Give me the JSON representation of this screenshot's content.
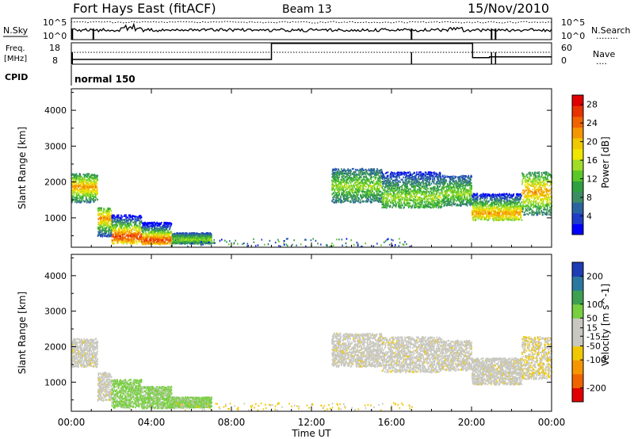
{
  "header": {
    "site": "Fort Hays East (fitACF)",
    "beam": "Beam 13",
    "date": "15/Nov/2010"
  },
  "nsky_panel": {
    "left_label": "N.Sky",
    "right_label": "N.Search",
    "right_dots": "........",
    "tick_top": "10^5",
    "tick_bottom": "10^0",
    "right_tick_top": "10^5",
    "right_tick_bottom": "10^0"
  },
  "freq_panel": {
    "left_label_top": "Freq.",
    "left_label_bottom": "[MHz]",
    "right_label": "Nave",
    "right_dots": "....",
    "tick_top": "18",
    "tick_bottom": "8",
    "right_tick_top": "60",
    "right_tick_bottom": "0",
    "freq_steps": [
      [
        0,
        8
      ],
      [
        10.0,
        15.5
      ],
      [
        20.05,
        8.8
      ],
      [
        20.9,
        9.2
      ],
      [
        24,
        9.2
      ]
    ]
  },
  "cpid": {
    "label": "CPID",
    "value": "normal 150"
  },
  "x_axis": {
    "label": "Time UT",
    "ticks": [
      "00:00",
      "04:00",
      "08:00",
      "12:00",
      "16:00",
      "20:00",
      "00:00"
    ],
    "tick_hours": [
      0,
      4,
      8,
      12,
      16,
      20,
      24
    ],
    "range": [
      0,
      24
    ]
  },
  "chart_data": [
    {
      "type": "heatmap",
      "title": "Power",
      "ylabel": "Slant Range [km]",
      "ylim": [
        180,
        4600
      ],
      "y_ticks": [
        1000,
        2000,
        3000,
        4000
      ],
      "colorbar": {
        "label": "Power [dB]",
        "ticks": [
          "4",
          "8",
          "12",
          "16",
          "20",
          "24",
          "28"
        ],
        "tick_values": [
          4,
          8,
          12,
          16,
          20,
          24,
          28
        ],
        "range": [
          0,
          30
        ],
        "colors": [
          "#0000ff",
          "#1e3cc8",
          "#2a64a0",
          "#3c8c64",
          "#2ea040",
          "#5ac828",
          "#a0dc28",
          "#f0e600",
          "#f0c800",
          "#f59600",
          "#f06400",
          "#e83200",
          "#e00000"
        ]
      },
      "regions": [
        {
          "t0": 0.0,
          "t1": 1.3,
          "r0": 1450,
          "r1": 2250,
          "center": 1880,
          "level": "high"
        },
        {
          "t0": 1.3,
          "t1": 2.0,
          "r0": 500,
          "r1": 1300,
          "center": 1000,
          "level": "high"
        },
        {
          "t0": 2.0,
          "t1": 3.5,
          "r0": 300,
          "r1": 1100,
          "center": 500,
          "level": "very_high"
        },
        {
          "t0": 3.5,
          "t1": 5.0,
          "r0": 280,
          "r1": 900,
          "center": 400,
          "level": "very_high"
        },
        {
          "t0": 5.0,
          "t1": 7.0,
          "r0": 300,
          "r1": 600,
          "center": 420,
          "level": "mid"
        },
        {
          "t0": 13.0,
          "t1": 15.5,
          "r0": 1450,
          "r1": 2400,
          "center": 1900,
          "level": "mid"
        },
        {
          "t0": 15.5,
          "t1": 18.5,
          "r0": 1300,
          "r1": 2300,
          "center": 1600,
          "level": "mid"
        },
        {
          "t0": 18.5,
          "t1": 20.0,
          "r0": 1350,
          "r1": 2200,
          "center": 1700,
          "level": "mid"
        },
        {
          "t0": 20.0,
          "t1": 22.5,
          "r0": 950,
          "r1": 1700,
          "center": 1150,
          "level": "high"
        },
        {
          "t0": 22.5,
          "t1": 24.0,
          "r0": 1100,
          "r1": 2300,
          "center": 1750,
          "level": "high"
        }
      ]
    },
    {
      "type": "heatmap",
      "title": "Velocity",
      "ylabel": "Slant Range [km]",
      "ylim": [
        180,
        4600
      ],
      "y_ticks": [
        1000,
        2000,
        3000,
        4000
      ],
      "colorbar": {
        "label": "Velocity [m s^-1]",
        "ticks": [
          "200",
          "100",
          "50",
          "15",
          "-15",
          "-50",
          "-100",
          "-200"
        ],
        "tick_values": [
          200,
          100,
          50,
          15,
          -15,
          -50,
          -100,
          -200
        ],
        "range": [
          -250,
          250
        ],
        "colors": [
          "#e00000",
          "#f06400",
          "#f59600",
          "#f0c800",
          "#c8c8c0",
          "#c8c8c0",
          "#78d040",
          "#3ca050",
          "#2a78a0",
          "#1e3cb4"
        ]
      },
      "regions": [
        {
          "t0": 0.0,
          "t1": 1.3,
          "r0": 1450,
          "r1": 2250,
          "center": 1880,
          "level": "ground"
        },
        {
          "t0": 1.3,
          "t1": 2.0,
          "r0": 500,
          "r1": 1300,
          "center": 1000,
          "level": "ground"
        },
        {
          "t0": 2.0,
          "t1": 3.5,
          "r0": 300,
          "r1": 1100,
          "center": 500,
          "level": "positive"
        },
        {
          "t0": 3.5,
          "t1": 5.0,
          "r0": 280,
          "r1": 900,
          "center": 400,
          "level": "positive"
        },
        {
          "t0": 5.0,
          "t1": 7.0,
          "r0": 300,
          "r1": 600,
          "center": 420,
          "level": "positive"
        },
        {
          "t0": 13.0,
          "t1": 15.5,
          "r0": 1450,
          "r1": 2400,
          "center": 1900,
          "level": "ground"
        },
        {
          "t0": 15.5,
          "t1": 18.5,
          "r0": 1300,
          "r1": 2300,
          "center": 1600,
          "level": "ground"
        },
        {
          "t0": 18.5,
          "t1": 20.0,
          "r0": 1350,
          "r1": 2200,
          "center": 1700,
          "level": "ground"
        },
        {
          "t0": 20.0,
          "t1": 22.5,
          "r0": 950,
          "r1": 1700,
          "center": 1150,
          "level": "ground"
        },
        {
          "t0": 22.5,
          "t1": 24.0,
          "r0": 1100,
          "r1": 2300,
          "center": 1750,
          "level": "negative"
        }
      ]
    }
  ]
}
